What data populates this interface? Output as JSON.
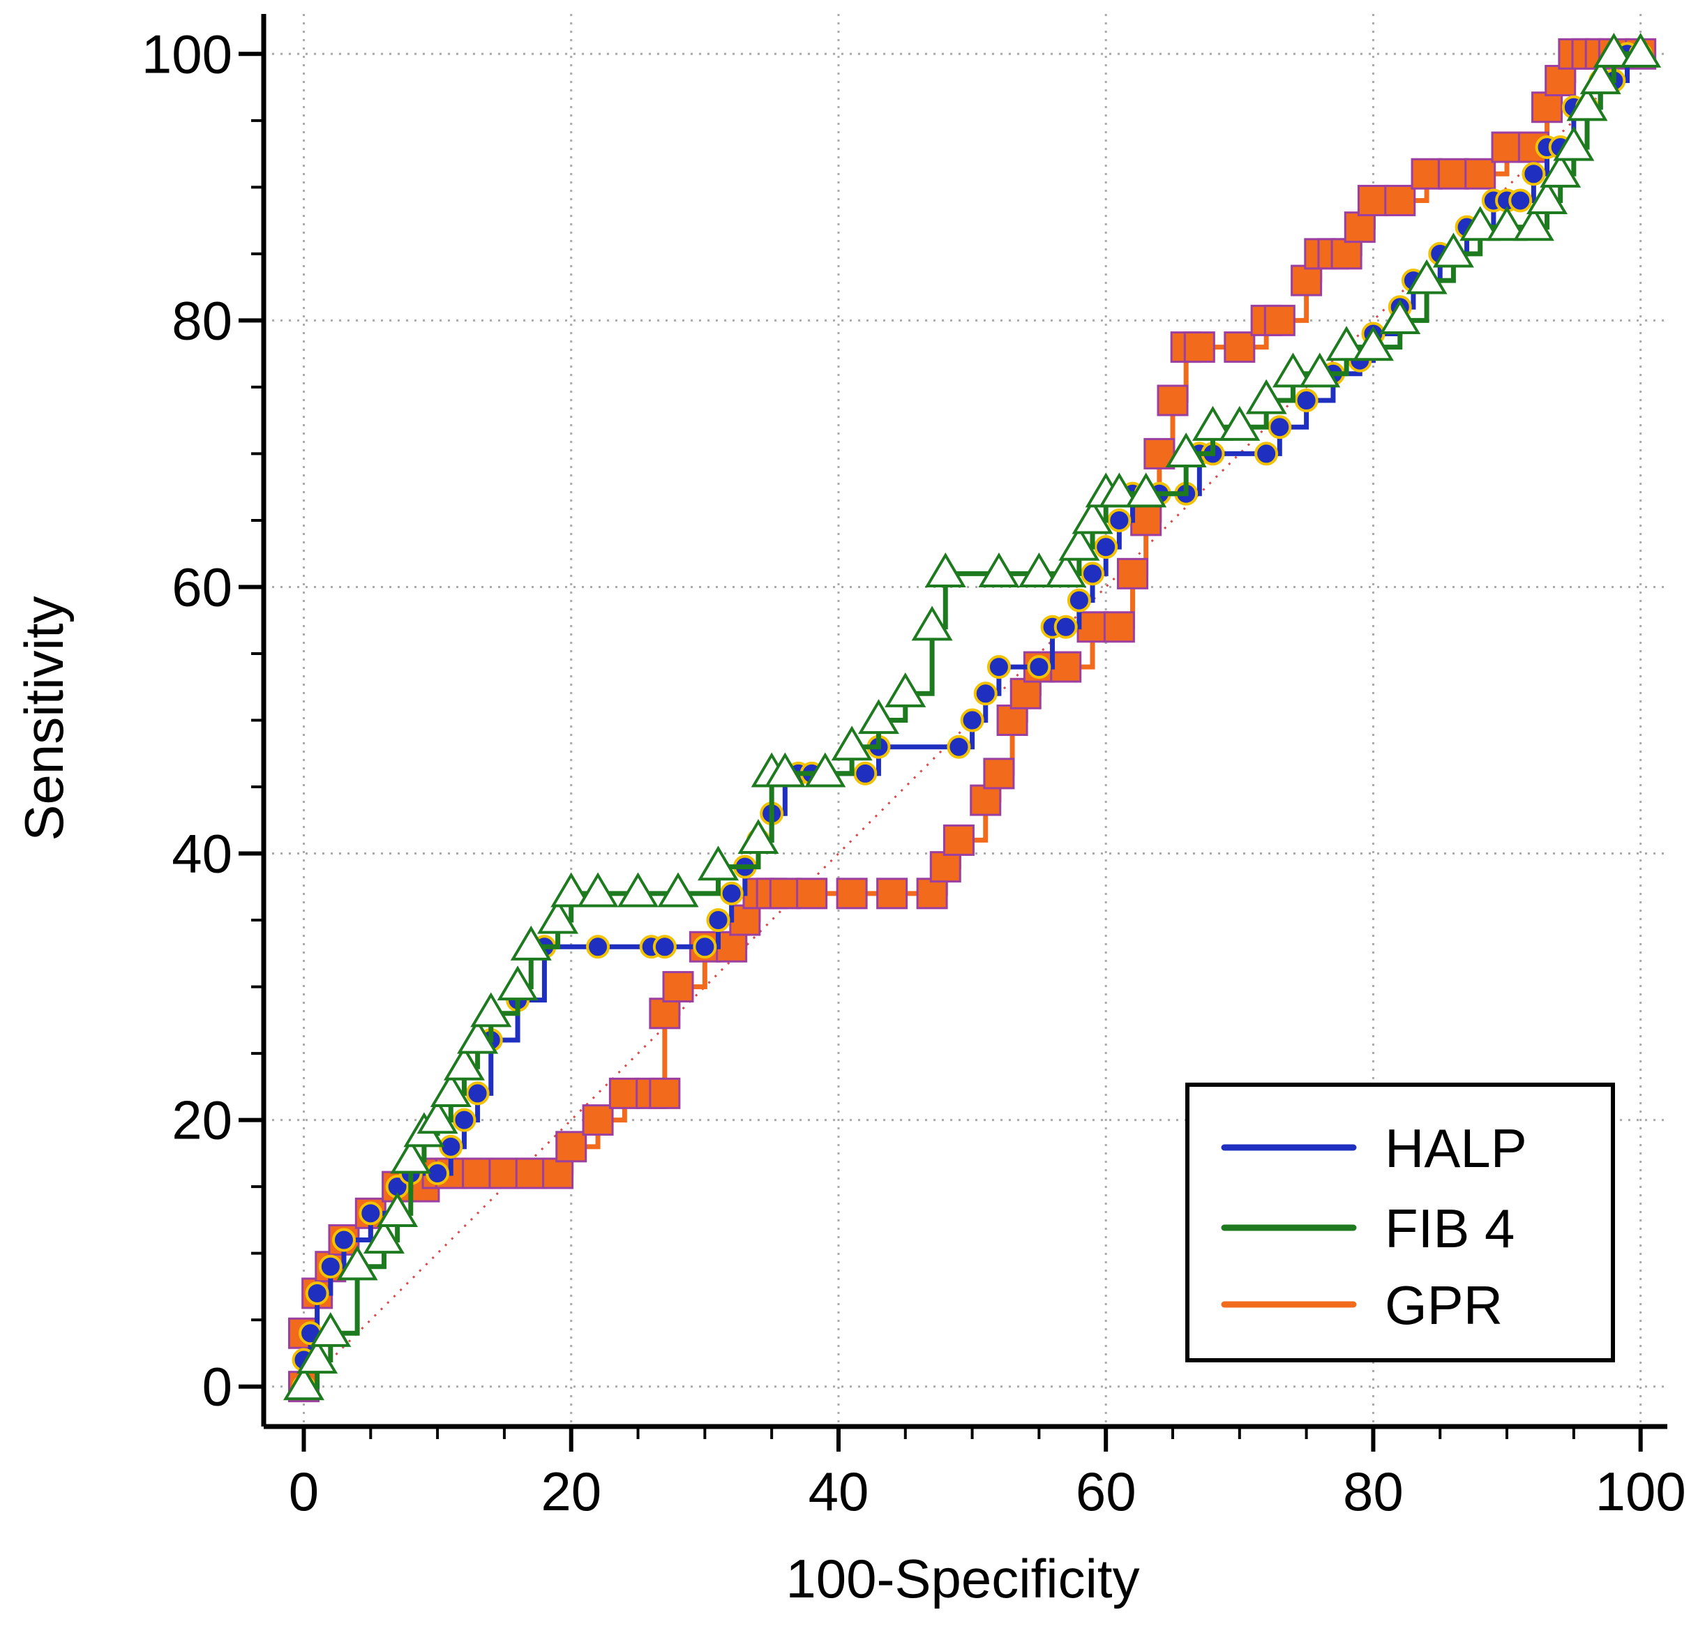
{
  "chart_data": {
    "type": "line",
    "subtype": "roc",
    "title": "",
    "xlabel": "100-Specificity",
    "ylabel": "Sensitivity",
    "xlim": [
      -3,
      102
    ],
    "ylim": [
      -3,
      103
    ],
    "xticks": [
      0,
      20,
      40,
      60,
      80,
      100
    ],
    "yticks": [
      0,
      20,
      40,
      60,
      80,
      100
    ],
    "minor_step": 5,
    "grid": true,
    "legend_position": "bottom-right",
    "reference_line": {
      "x": [
        0,
        100
      ],
      "y": [
        0,
        100
      ],
      "color": "#d94a4a"
    },
    "series": [
      {
        "name": "HALP",
        "marker": "circle",
        "color": "#1f2fbf",
        "marker_fill": "#1f2fbf",
        "marker_edge": "#f2c200",
        "x": [
          0,
          0,
          0.5,
          1,
          2,
          3,
          5,
          7,
          8,
          10,
          11,
          12,
          13,
          14,
          16,
          18,
          22,
          26,
          27,
          30,
          31,
          32,
          33,
          34,
          35,
          36,
          37,
          38,
          42,
          43,
          49,
          50,
          51,
          52,
          55,
          56,
          57,
          58,
          59,
          60,
          61,
          62,
          63,
          64,
          66,
          67,
          68,
          72,
          73,
          75,
          77,
          79,
          80,
          82,
          83,
          85,
          87,
          89,
          90,
          91,
          92,
          93,
          94,
          95,
          96,
          97,
          98,
          99,
          100
        ],
        "y": [
          0,
          2,
          4,
          7,
          9,
          11,
          13,
          15,
          16,
          16,
          18,
          20,
          22,
          26,
          29,
          33,
          33,
          33,
          33,
          33,
          35,
          37,
          39,
          41,
          43,
          46,
          46,
          46,
          46,
          48,
          48,
          50,
          52,
          54,
          54,
          57,
          57,
          59,
          61,
          63,
          65,
          67,
          67,
          67,
          67,
          70,
          70,
          70,
          72,
          74,
          76,
          77,
          79,
          81,
          83,
          85,
          87,
          89,
          89,
          89,
          91,
          93,
          93,
          96,
          96,
          98,
          98,
          100,
          100
        ]
      },
      {
        "name": "FIB 4",
        "marker": "triangle",
        "color": "#1e7a1e",
        "marker_fill": "#ffffff",
        "marker_edge": "#1e7a1e",
        "x": [
          0,
          1,
          2,
          4,
          6,
          7,
          8,
          9,
          10,
          11,
          12,
          13,
          14,
          16,
          17,
          19,
          20,
          22,
          25,
          28,
          31,
          34,
          35,
          36,
          39,
          41,
          43,
          45,
          47,
          48,
          52,
          55,
          57,
          58,
          59,
          60,
          61,
          63,
          66,
          68,
          70,
          72,
          74,
          76,
          78,
          80,
          82,
          84,
          86,
          88,
          90,
          92,
          93,
          94,
          95,
          96,
          97,
          98,
          100
        ],
        "y": [
          0,
          2,
          4,
          9,
          11,
          13,
          17,
          19,
          20,
          22,
          24,
          26,
          28,
          30,
          33,
          35,
          37,
          37,
          37,
          37,
          39,
          41,
          46,
          46,
          46,
          48,
          50,
          52,
          57,
          61,
          61,
          61,
          61,
          63,
          65,
          67,
          67,
          67,
          70,
          72,
          72,
          74,
          76,
          76,
          78,
          78,
          80,
          83,
          85,
          87,
          87,
          87,
          89,
          91,
          93,
          96,
          98,
          100,
          100
        ]
      },
      {
        "name": "GPR",
        "marker": "square",
        "color": "#f26a1b",
        "marker_fill": "#f26a1b",
        "marker_edge": "#9b3fa0",
        "x": [
          0,
          0,
          1,
          2,
          3,
          5,
          7,
          9,
          10,
          11,
          13,
          15,
          17,
          19,
          20,
          22,
          24,
          26,
          27,
          27,
          28,
          30,
          32,
          33,
          34,
          35,
          36,
          38,
          41,
          44,
          47,
          48,
          49,
          51,
          52,
          53,
          54,
          55,
          57,
          59,
          61,
          62,
          63,
          64,
          65,
          66,
          67,
          70,
          72,
          73,
          75,
          76,
          77,
          78,
          79,
          80,
          82,
          84,
          86,
          88,
          90,
          92,
          93,
          94,
          95,
          96,
          97,
          98,
          100
        ],
        "y": [
          0,
          4,
          7,
          9,
          11,
          13,
          15,
          15,
          16,
          16,
          16,
          16,
          16,
          16,
          18,
          20,
          22,
          22,
          22,
          28,
          30,
          33,
          33,
          35,
          37,
          37,
          37,
          37,
          37,
          37,
          37,
          39,
          41,
          44,
          46,
          50,
          52,
          54,
          54,
          57,
          57,
          61,
          65,
          70,
          74,
          78,
          78,
          78,
          80,
          80,
          83,
          85,
          85,
          85,
          87,
          89,
          89,
          91,
          91,
          91,
          93,
          93,
          96,
          98,
          100,
          100,
          100,
          100,
          100
        ]
      }
    ]
  }
}
